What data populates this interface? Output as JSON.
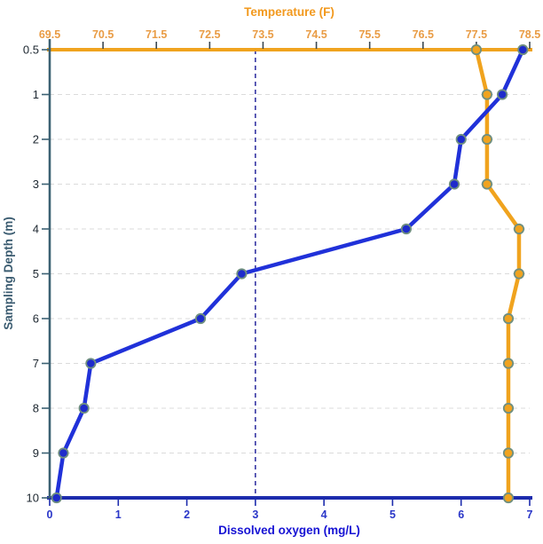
{
  "chart_data": {
    "type": "line",
    "variant": "depth-profile-dual-x-axis",
    "title": "Temperature (F)",
    "categories": [
      "0.5",
      "1",
      "2",
      "3",
      "4",
      "5",
      "6",
      "7",
      "8",
      "9",
      "10"
    ],
    "top_axis": {
      "label": "Temperature (F)",
      "range": [
        69.5,
        78.5
      ],
      "ticks": [
        "69.5",
        "70.5",
        "71.5",
        "72.5",
        "73.5",
        "74.5",
        "75.5",
        "76.5",
        "77.5",
        "78.5"
      ]
    },
    "bottom_axis": {
      "label": "Dissolved oxygen (mg/L)",
      "range": [
        0,
        7
      ],
      "ticks": [
        "0",
        "1",
        "2",
        "3",
        "4",
        "5",
        "6",
        "7"
      ]
    },
    "y_axis": {
      "label": "Sampling Depth (m)",
      "ticks": [
        "0.5",
        "1",
        "2",
        "3",
        "4",
        "5",
        "6",
        "7",
        "8",
        "9",
        "10"
      ]
    },
    "series": [
      {
        "id": "temperature",
        "name": "Temperature (F)",
        "axis": "top",
        "color": "#F0A31E",
        "point_color": "#F0A31F",
        "values": [
          77.5,
          77.7,
          77.7,
          77.7,
          78.3,
          78.3,
          78.1,
          78.1,
          78.1,
          78.1,
          78.1
        ]
      },
      {
        "id": "dissolved-oxygen",
        "name": "Dissolved oxygen (mg/L)",
        "axis": "bottom",
        "color": "#2031D9",
        "point_color": "#1E2BCB",
        "values": [
          6.9,
          6.6,
          6.0,
          5.9,
          5.2,
          2.8,
          2.2,
          0.6,
          0.5,
          0.2,
          0.1
        ]
      }
    ],
    "reference_line": {
      "axis": "bottom",
      "value": 3,
      "style": "dashed"
    },
    "grid": "horizontal-dashed",
    "legend": "none",
    "colors": {
      "orange": "#F0A31E",
      "orange_text": "#E99C45",
      "orange_title": "#F2991E",
      "navy": "#1D2CAD",
      "bottom_tick_text": "#2A36C8",
      "bottom_title": "#1713D4",
      "slate": "#3C6173",
      "left_tick_text": "#1D2730",
      "y_title": "#3A5B70",
      "grid": "#DBDBDB",
      "reference": "#191996",
      "tick_dark": "#3B4852",
      "marker_ring": "#6F8F80"
    }
  }
}
